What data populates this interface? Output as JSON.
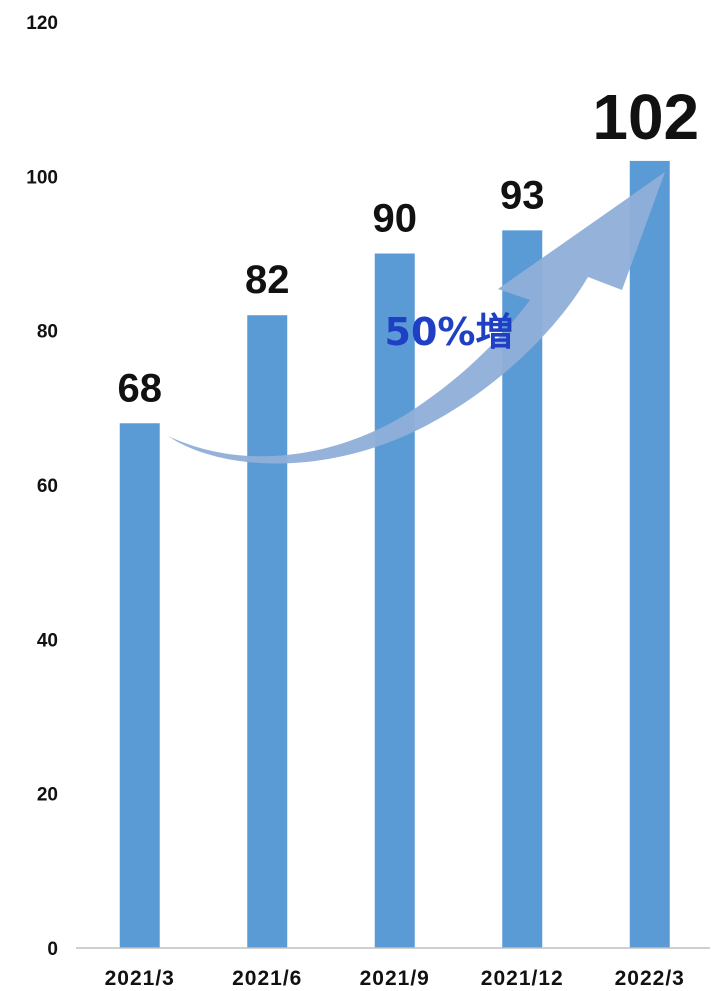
{
  "chart_data": {
    "type": "bar",
    "categories": [
      "2021/3",
      "2021/6",
      "2021/9",
      "2021/12",
      "2022/3"
    ],
    "values": [
      68,
      82,
      90,
      93,
      102
    ],
    "data_labels": [
      "68",
      "82",
      "90",
      "93",
      "102"
    ],
    "highlight_index": 4,
    "title": "",
    "xlabel": "",
    "ylabel": "",
    "ylim": [
      0,
      120
    ],
    "yticks": [
      0,
      20,
      40,
      60,
      80,
      100,
      120
    ],
    "grid": false,
    "annotation": {
      "text": "50%増",
      "from_category": "2021/3",
      "to_category": "2022/3"
    },
    "colors": {
      "bar": "#5B9BD5",
      "highlight_label": "#FF0000",
      "label": "#111111",
      "arrow": "#8FAFD8",
      "annotation_text": "#1F3FC4"
    }
  }
}
